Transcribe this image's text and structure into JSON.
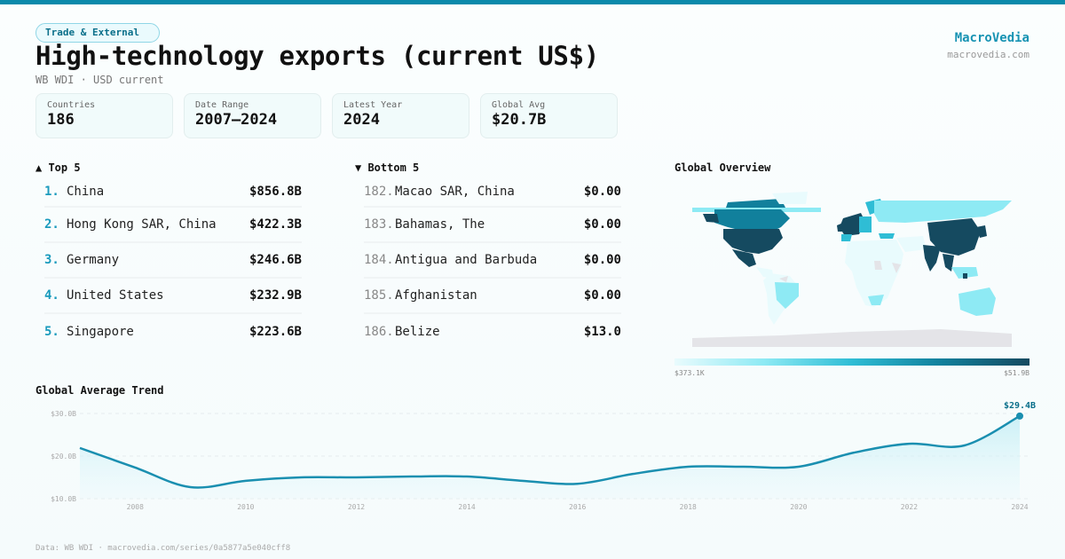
{
  "header": {
    "category_badge": "Trade & External",
    "title": "High-technology exports (current US$)",
    "subtitle": "WB WDI · USD current",
    "brand_name": "MacroVedia",
    "brand_url": "macrovedia.com"
  },
  "stats": [
    {
      "label": "Countries",
      "value": "186"
    },
    {
      "label": "Date Range",
      "value": "2007–2024"
    },
    {
      "label": "Latest Year",
      "value": "2024"
    },
    {
      "label": "Global Avg",
      "value": "$20.7B"
    }
  ],
  "top5": {
    "heading": "▲ Top 5",
    "items": [
      {
        "rank": "1.",
        "name": "China",
        "value": "$856.8B"
      },
      {
        "rank": "2.",
        "name": "Hong Kong SAR, China",
        "value": "$422.3B"
      },
      {
        "rank": "3.",
        "name": "Germany",
        "value": "$246.6B"
      },
      {
        "rank": "4.",
        "name": "United States",
        "value": "$232.9B"
      },
      {
        "rank": "5.",
        "name": "Singapore",
        "value": "$223.6B"
      }
    ]
  },
  "bottom5": {
    "heading": "▼ Bottom 5",
    "items": [
      {
        "rank": "182.",
        "name": "Macao SAR, China",
        "value": "$0.00"
      },
      {
        "rank": "183.",
        "name": "Bahamas, The",
        "value": "$0.00"
      },
      {
        "rank": "184.",
        "name": "Antigua and Barbuda",
        "value": "$0.00"
      },
      {
        "rank": "185.",
        "name": "Afghanistan",
        "value": "$0.00"
      },
      {
        "rank": "186.",
        "name": "Belize",
        "value": "$13.0"
      }
    ]
  },
  "map": {
    "title": "Global Overview",
    "legend_min": "$373.1K",
    "legend_max": "$51.9B",
    "colors": {
      "lowest": "#e9fbfd",
      "low": "#8eeaf4",
      "mid": "#2fbdd5",
      "high": "#11809c",
      "highest": "#154a60",
      "nodata": "#e4e4e8"
    }
  },
  "trend": {
    "title": "Global Average Trend",
    "last_label": "$29.4B",
    "line_color": "#1a8fb0"
  },
  "chart_data": {
    "type": "area",
    "title": "Global Average Trend",
    "xlabel": "",
    "ylabel": "",
    "x": [
      2007,
      2008,
      2009,
      2010,
      2011,
      2012,
      2013,
      2014,
      2015,
      2016,
      2017,
      2018,
      2019,
      2020,
      2021,
      2022,
      2023,
      2024
    ],
    "series": [
      {
        "name": "Global Average (US$ B)",
        "values": [
          21.9,
          17.3,
          12.7,
          14.2,
          15.0,
          15.0,
          15.2,
          15.2,
          14.2,
          13.5,
          15.8,
          17.5,
          17.5,
          17.5,
          20.8,
          22.9,
          22.5,
          29.4
        ]
      }
    ],
    "yticks": [
      "$10.0B",
      "$20.0B",
      "$30.0B"
    ],
    "xticks": [
      "2008",
      "2010",
      "2012",
      "2014",
      "2016",
      "2018",
      "2020",
      "2022",
      "2024"
    ],
    "ylim": [
      10,
      30
    ],
    "grid": true,
    "annotation": {
      "x": 2024,
      "label": "$29.4B"
    }
  },
  "footer": {
    "source": "Data: WB WDI · macrovedia.com/series/0a5877a5e040cff8"
  }
}
